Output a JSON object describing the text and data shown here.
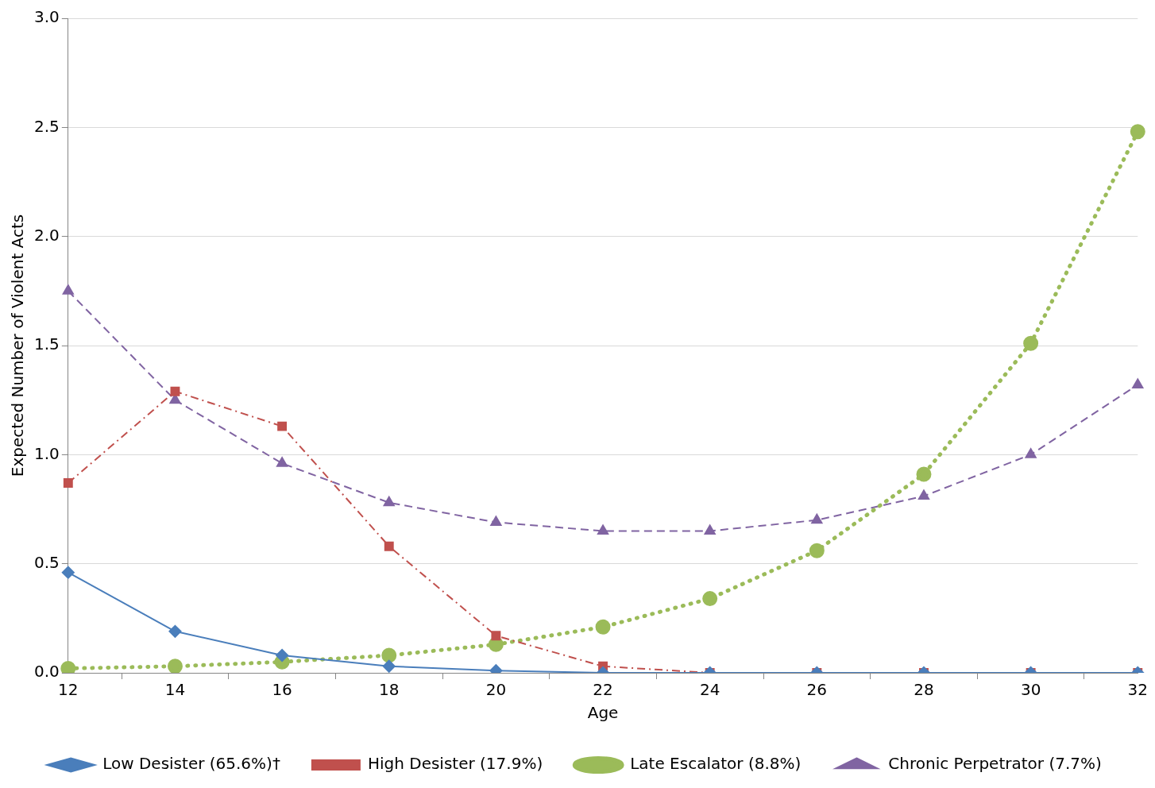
{
  "chart_data": {
    "type": "line",
    "xlabel": "Age",
    "ylabel": "Expected Number of Violent Acts",
    "categories": [
      "12",
      "14",
      "16",
      "18",
      "20",
      "22",
      "24",
      "26",
      "28",
      "30",
      "32"
    ],
    "ylim": [
      0,
      3
    ],
    "yticks": [
      {
        "value": 0,
        "label": "0.0"
      },
      {
        "value": 0.5,
        "label": "0.5"
      },
      {
        "value": 1,
        "label": "1.0"
      },
      {
        "value": 1.5,
        "label": "1.5"
      },
      {
        "value": 2,
        "label": "2.0"
      },
      {
        "value": 2.5,
        "label": "2.5"
      },
      {
        "value": 3,
        "label": "3.0"
      }
    ],
    "grid": "y",
    "legend": "bottom",
    "series": [
      {
        "name": "Low Desister (65.6%)†",
        "color": "#4a7ebb",
        "marker": "diamond",
        "line_style": "solid",
        "values": [
          0.46,
          0.19,
          0.08,
          0.03,
          0.01,
          0.0,
          0.0,
          0.0,
          0.0,
          0.0,
          0.0
        ]
      },
      {
        "name": "High Desister (17.9%)",
        "color": "#c0504d",
        "marker": "square",
        "line_style": "dashdot",
        "values": [
          0.87,
          1.29,
          1.13,
          0.58,
          0.17,
          0.03,
          0.0,
          0.0,
          0.0,
          0.0,
          0.0
        ]
      },
      {
        "name": "Late Escalator (8.8%)",
        "color": "#9bbb59",
        "marker": "circle",
        "line_style": "dotted",
        "values": [
          0.02,
          0.03,
          0.05,
          0.08,
          0.13,
          0.21,
          0.34,
          0.56,
          0.91,
          1.51,
          2.48
        ]
      },
      {
        "name": "Chronic Perpetrator (7.7%)",
        "color": "#8064a2",
        "marker": "triangle",
        "line_style": "dashed",
        "values": [
          1.75,
          1.25,
          0.96,
          0.78,
          0.69,
          0.65,
          0.65,
          0.7,
          0.81,
          1.0,
          1.32
        ]
      }
    ]
  }
}
